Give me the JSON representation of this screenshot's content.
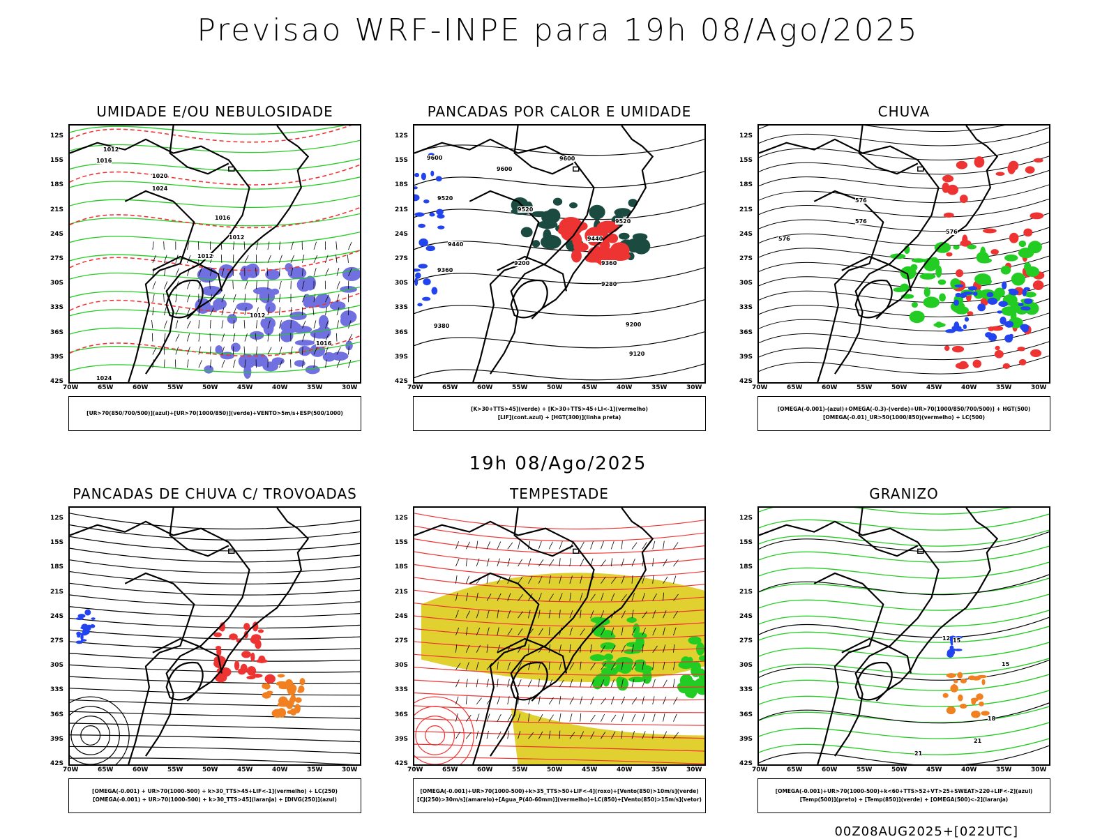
{
  "title": "Previsao WRF-INPE  para 19h 08/Ago/2025",
  "mid_title": "19h 08/Ago/2025",
  "footer": "00Z08AUG2025+[022UTC]",
  "lat_labels": [
    "12S",
    "15S",
    "18S",
    "21S",
    "24S",
    "27S",
    "30S",
    "33S",
    "36S",
    "39S",
    "42S"
  ],
  "lon_labels": [
    "70W",
    "65W",
    "60W",
    "55W",
    "50W",
    "45W",
    "40W",
    "35W",
    "30W"
  ],
  "panels": [
    {
      "title": "UMIDADE E/OU NEBULOSIDADE",
      "legend": [
        "[UR>70(850/700/500)](azul)+[UR>70(1000/850)](verde)+VENTO>5m/s+ESP(500/1000)"
      ],
      "colors": {
        "blue": "#7070e0",
        "green": "#22cc22",
        "red": "#ee3333"
      }
    },
    {
      "title": "PANCADAS POR CALOR E UMIDADE",
      "legend": [
        "[K>30+TTS>45](verde) + [K>30+TTS>45+LI<-1](vermelho)",
        "[LIF](cont.azul) + [HGT(300)](linha preta)"
      ],
      "colors": {
        "teal": "#1a4a40",
        "red": "#ee3333",
        "blue": "#2244ee"
      }
    },
    {
      "title": "CHUVA",
      "legend": [
        "[OMEGA(-0.001)-(azul)+OMEGA(-0.3)-(verde)+UR>70(1000/850/700/500)] + HGT(500)",
        "[OMEGA(-0.01)_UR>50(1000/850)(vermelho) + LC(500)"
      ],
      "colors": {
        "red": "#ee3333",
        "green": "#22cc22",
        "blue": "#2244ee"
      }
    },
    {
      "title": "PANCADAS DE CHUVA C/ TROVOADAS",
      "legend": [
        "[OMEGA(-0.001) + UR>70(1000-500) + k>30_TTS>45+LIF<-1](vermelho) + LC(250)",
        "[OMEGA(-0.001) + UR>70(1000-500) + k>30_TTS>45](laranja) + [DIVG(250)](azul)"
      ],
      "colors": {
        "red": "#ee3333",
        "orange": "#f08020",
        "blue": "#2244ee"
      }
    },
    {
      "title": "TEMPESTADE",
      "legend": [
        "[OMEGA(-0.001)+UR>70(1000-500)+k>35_TTS>50+LIF<-4](roxo)+[Vento(850)>10m/s](verde)",
        "[CJ(250)>30m/s](amarelo)+[Agua_P(40-60mm)](vermelho)+LC(850)+[Vento(850)>15m/s](vetor)"
      ],
      "colors": {
        "yellow": "#e0d030",
        "green": "#22cc22",
        "red": "#ee3333"
      }
    },
    {
      "title": "GRANIZO",
      "legend": [
        "[OMEGA(-0.001)+UR>70(1000-500)+k<60+TTS>52+VT>25+SWEAT>220+LIF<-2](azul)",
        "[Temp(500)](preto) + [Temp(850)](verde) + [OMEGA(500)<-2](laranja)"
      ],
      "colors": {
        "green": "#22cc22",
        "orange": "#f08020",
        "blue": "#2244ee"
      }
    }
  ],
  "contour_labels": {
    "p1": [
      "1012",
      "1016",
      "1020",
      "1024",
      "1012",
      "1016",
      "1012",
      "1012",
      "1016",
      "1024"
    ],
    "p2": [
      "9600",
      "9600",
      "9600",
      "9520",
      "9520",
      "9520",
      "9440",
      "9440",
      "9360",
      "9360",
      "9280",
      "9200",
      "9200",
      "9120",
      "9380"
    ],
    "p3": [
      "576",
      "576",
      "576",
      "576"
    ],
    "p6": [
      "12",
      "15",
      "15",
      "18",
      "21",
      "21"
    ]
  }
}
